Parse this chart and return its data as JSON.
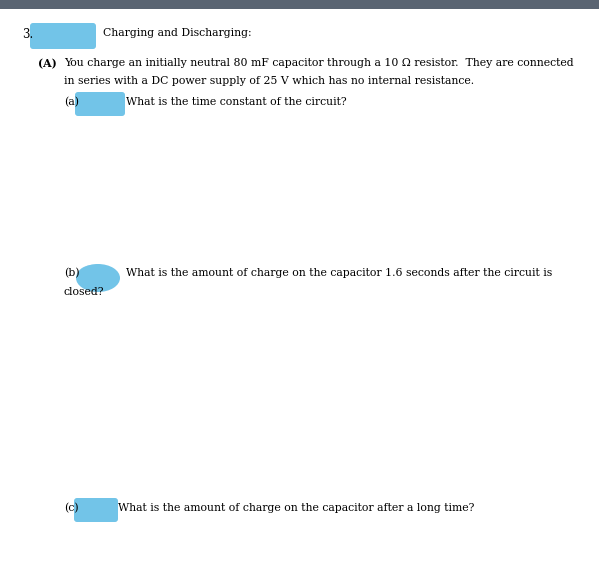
{
  "top_bar_color": "#5a6472",
  "page_background": "#ffffff",
  "blob_color": "#72c4e8",
  "question_number": "3.",
  "title": "Charging and Discharging:",
  "part_A_label": "(A)",
  "part_A_text1": "You charge an initially neutral 80 mF capacitor through a 10 Ω resistor.  They are connected",
  "part_A_text2": "in series with a DC power supply of 25 V which has no internal resistance.",
  "part_a_label": "(a)",
  "part_a_text": "What is the time constant of the circuit?",
  "part_b_label": "(b)",
  "part_b_text1": "What is the amount of charge on the capacitor 1.6 seconds after the circuit is",
  "part_b_text2": "closed?",
  "part_c_label": "(c)",
  "part_c_text": "What is the amount of charge on the capacitor after a long time?",
  "font_size_main": 7.8,
  "font_size_num": 8.5,
  "font_family": "DejaVu Serif"
}
